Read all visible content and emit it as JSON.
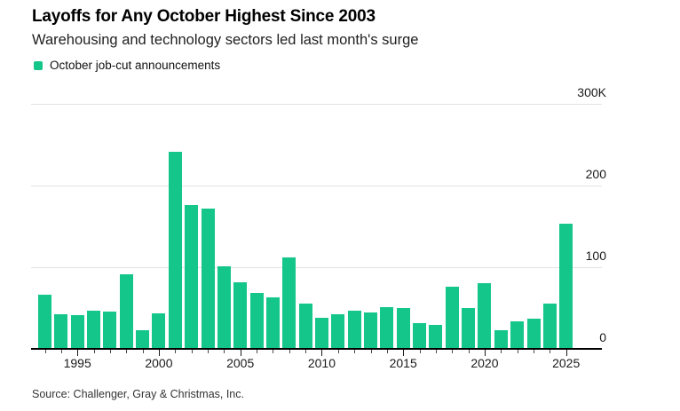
{
  "header": {
    "title": "Layoffs for Any October Highest Since 2003",
    "subtitle": "Warehousing and technology sectors led last month's surge"
  },
  "legend": {
    "label": "October job-cut announcements",
    "swatch_color": "#14c68a"
  },
  "source": "Source: Challenger, Gray & Christmas, Inc.",
  "colors": {
    "bar": "#14c68a",
    "gridline": "#e3e3e3",
    "axis": "#000000",
    "text": "#1a1a1a"
  },
  "chart_data": {
    "type": "bar",
    "title": "Layoffs for Any October Highest Since 2003",
    "subtitle": "Warehousing and technology sectors led last month's surge",
    "series_name": "October job-cut announcements",
    "unit": "thousands of announced job cuts",
    "x": [
      1993,
      1994,
      1995,
      1996,
      1997,
      1998,
      1999,
      2000,
      2001,
      2002,
      2003,
      2004,
      2005,
      2006,
      2007,
      2008,
      2009,
      2010,
      2011,
      2012,
      2013,
      2014,
      2015,
      2016,
      2017,
      2018,
      2019,
      2020,
      2021,
      2022,
      2023,
      2024,
      2025
    ],
    "values": [
      66,
      42,
      41,
      47,
      46,
      91,
      23,
      44,
      241,
      176,
      172,
      101,
      81,
      68,
      63,
      112,
      55,
      38,
      42,
      47,
      45,
      51,
      50,
      31,
      29,
      76,
      50,
      80,
      23,
      34,
      37,
      55,
      153
    ],
    "ylim": [
      0,
      300
    ],
    "yticks": [
      {
        "value": 300,
        "label": "300K"
      },
      {
        "value": 200,
        "label": "200"
      },
      {
        "value": 100,
        "label": "100"
      },
      {
        "value": 0,
        "label": "0"
      }
    ],
    "xticks": [
      1995,
      2000,
      2005,
      2010,
      2015,
      2020,
      2025
    ],
    "bar_color": "#14c68a",
    "grid": true,
    "legend_position": "top-left",
    "source": "Source: Challenger, Gray & Christmas, Inc."
  }
}
